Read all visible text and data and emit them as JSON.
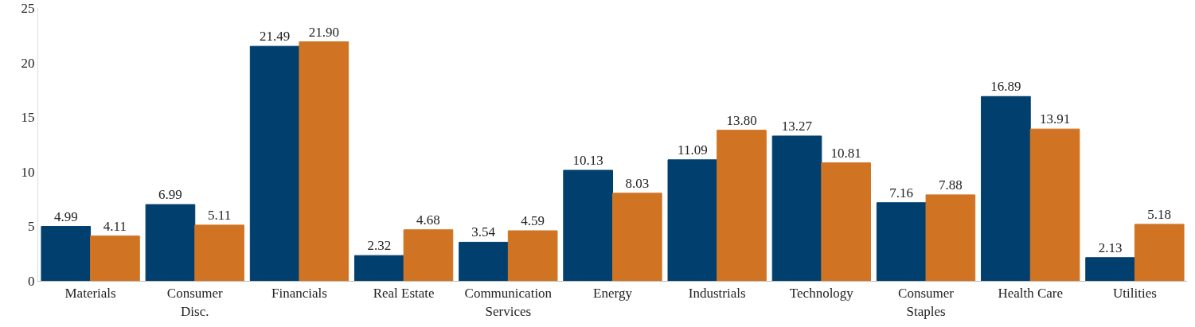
{
  "chart_data": {
    "type": "bar",
    "categories": [
      "Materials",
      "Consumer Disc.",
      "Financials",
      "Real Estate",
      "Communication Services",
      "Energy",
      "Industrials",
      "Technology",
      "Consumer Staples",
      "Health Care",
      "Utilities"
    ],
    "series": [
      {
        "color": "#003f6e",
        "values": [
          4.99,
          6.99,
          21.49,
          2.32,
          3.54,
          10.13,
          11.09,
          13.27,
          7.16,
          16.89,
          2.13
        ],
        "value_labels": [
          "4.99",
          "6.99",
          "21.49",
          "2.32",
          "3.54",
          "10.13",
          "11.09",
          "13.27",
          "7.16",
          "16.89",
          "2.13"
        ]
      },
      {
        "color": "#d07423",
        "values": [
          4.11,
          5.11,
          21.9,
          4.68,
          4.59,
          8.03,
          13.8,
          10.81,
          7.88,
          13.91,
          5.18
        ],
        "value_labels": [
          "4.11",
          "5.11",
          "21.90",
          "4.68",
          "4.59",
          "8.03",
          "13.80",
          "10.81",
          "7.88",
          "13.91",
          "5.18"
        ]
      }
    ],
    "ylim": [
      0,
      25
    ],
    "yticks": [
      0,
      5,
      10,
      15,
      20,
      25
    ],
    "grid": false
  }
}
